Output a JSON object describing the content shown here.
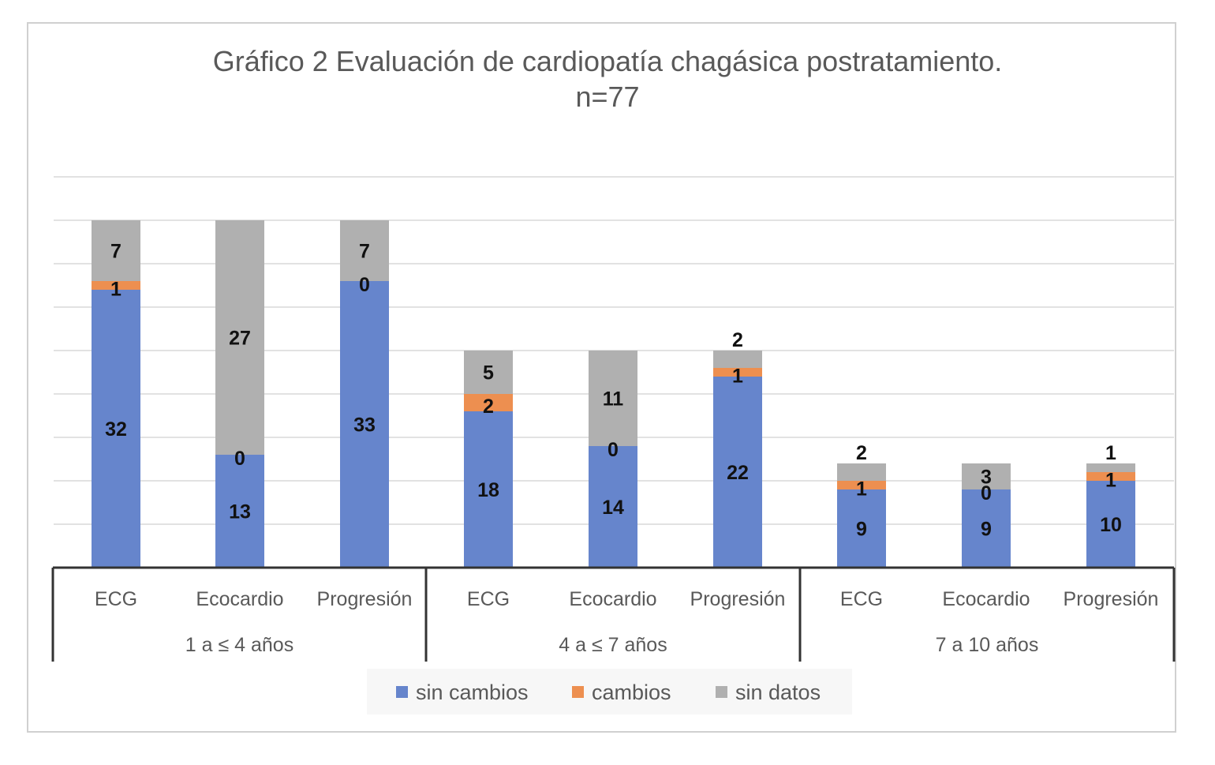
{
  "chart_data": {
    "type": "bar",
    "stacked": true,
    "title": "Gráfico 2 Evaluación de cardiopatía chagásica postratamiento.",
    "subtitle": "n=77",
    "xlabel": "",
    "ylabel": "",
    "ylim": [
      0,
      45
    ],
    "grid": true,
    "legend": "bottom",
    "groups": [
      {
        "label": "1 a ≤ 4 años",
        "categories": [
          "ECG",
          "Ecocardio",
          "Progresión"
        ]
      },
      {
        "label": "4 a ≤ 7 años",
        "categories": [
          "ECG",
          "Ecocardio",
          "Progresión"
        ]
      },
      {
        "label": "7 a 10 años",
        "categories": [
          "ECG",
          "Ecocardio",
          "Progresión"
        ]
      }
    ],
    "categories": [
      "ECG",
      "Ecocardio",
      "Progresión",
      "ECG",
      "Ecocardio",
      "Progresión",
      "ECG",
      "Ecocardio",
      "Progresión"
    ],
    "series": [
      {
        "name": "sin cambios",
        "color": "#6685cc",
        "values": [
          32,
          13,
          33,
          18,
          14,
          22,
          9,
          9,
          10
        ]
      },
      {
        "name": "cambios",
        "color": "#ed8f50",
        "values": [
          1,
          0,
          0,
          2,
          0,
          1,
          1,
          0,
          1
        ]
      },
      {
        "name": "sin datos",
        "color": "#b0b0b0",
        "values": [
          7,
          27,
          7,
          5,
          11,
          2,
          2,
          3,
          1
        ]
      }
    ]
  }
}
